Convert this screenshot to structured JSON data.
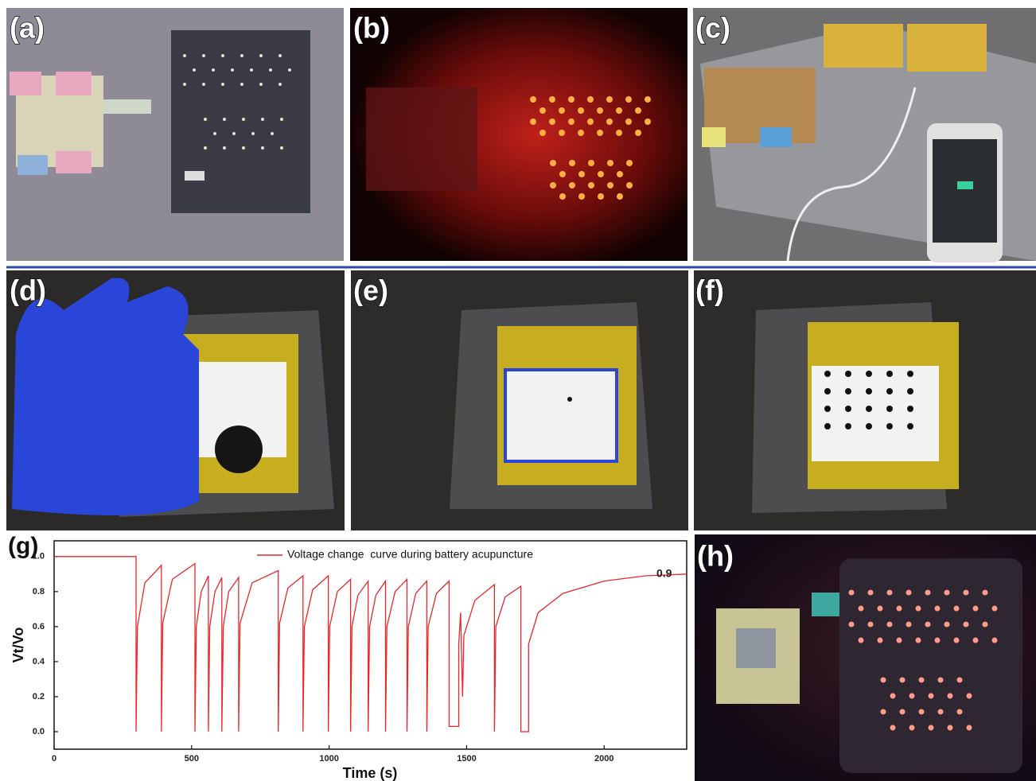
{
  "panels": [
    {
      "label": "(a)"
    },
    {
      "label": "(b)"
    },
    {
      "label": "(c)"
    },
    {
      "label": "(d)"
    },
    {
      "label": "(e)"
    },
    {
      "label": "(f)"
    },
    {
      "label": "(g)"
    },
    {
      "label": "(h)"
    }
  ],
  "chart_data": {
    "type": "line",
    "xlabel": "Time (s)",
    "ylabel": "Vt/Vo",
    "annotation": "0.9",
    "xlim": [
      0,
      2300
    ],
    "ylim": [
      -0.1,
      1.09
    ],
    "xticks": [
      0,
      500,
      1000,
      1500,
      2000
    ],
    "yticks": [
      {
        "value": 0,
        "label": "0.0"
      },
      0.2,
      0.4,
      0.6,
      0.8,
      {
        "value": 1,
        "label": "1.0"
      }
    ],
    "x": [
      0,
      298,
      298,
      303,
      330,
      390,
      390,
      395,
      430,
      512,
      512,
      517,
      535,
      561,
      561,
      566,
      585,
      610,
      610,
      615,
      635,
      671,
      671,
      676,
      720,
      815,
      815,
      820,
      850,
      905,
      905,
      910,
      940,
      997,
      997,
      1002,
      1030,
      1078,
      1078,
      1083,
      1105,
      1142,
      1142,
      1147,
      1170,
      1205,
      1205,
      1210,
      1240,
      1283,
      1283,
      1288,
      1315,
      1355,
      1355,
      1360,
      1390,
      1436,
      1436,
      1471,
      1471,
      1478,
      1485,
      1490,
      1530,
      1601,
      1601,
      1606,
      1640,
      1697,
      1697,
      1725,
      1725,
      1760,
      1850,
      2000,
      2150,
      2300
    ],
    "series": [
      {
        "name": "Voltage change  curve during battery acupuncture",
        "color": "#e8272a",
        "values": [
          1.0,
          1.0,
          0,
          0.6,
          0.85,
          0.95,
          0,
          0.62,
          0.87,
          0.96,
          0,
          0.6,
          0.8,
          0.89,
          0,
          0.6,
          0.8,
          0.88,
          0,
          0.6,
          0.8,
          0.88,
          0,
          0.62,
          0.85,
          0.92,
          0,
          0.62,
          0.82,
          0.89,
          0,
          0.6,
          0.81,
          0.89,
          0,
          0.6,
          0.8,
          0.87,
          0,
          0.6,
          0.78,
          0.86,
          0,
          0.6,
          0.78,
          0.86,
          0,
          0.6,
          0.8,
          0.87,
          0,
          0.6,
          0.79,
          0.86,
          0,
          0.6,
          0.79,
          0.86,
          0.03,
          0.03,
          0.5,
          0.68,
          0.2,
          0.55,
          0.75,
          0.84,
          0,
          0.6,
          0.77,
          0.83,
          0,
          0,
          0.5,
          0.68,
          0.79,
          0.86,
          0.89,
          0.9
        ]
      }
    ]
  }
}
